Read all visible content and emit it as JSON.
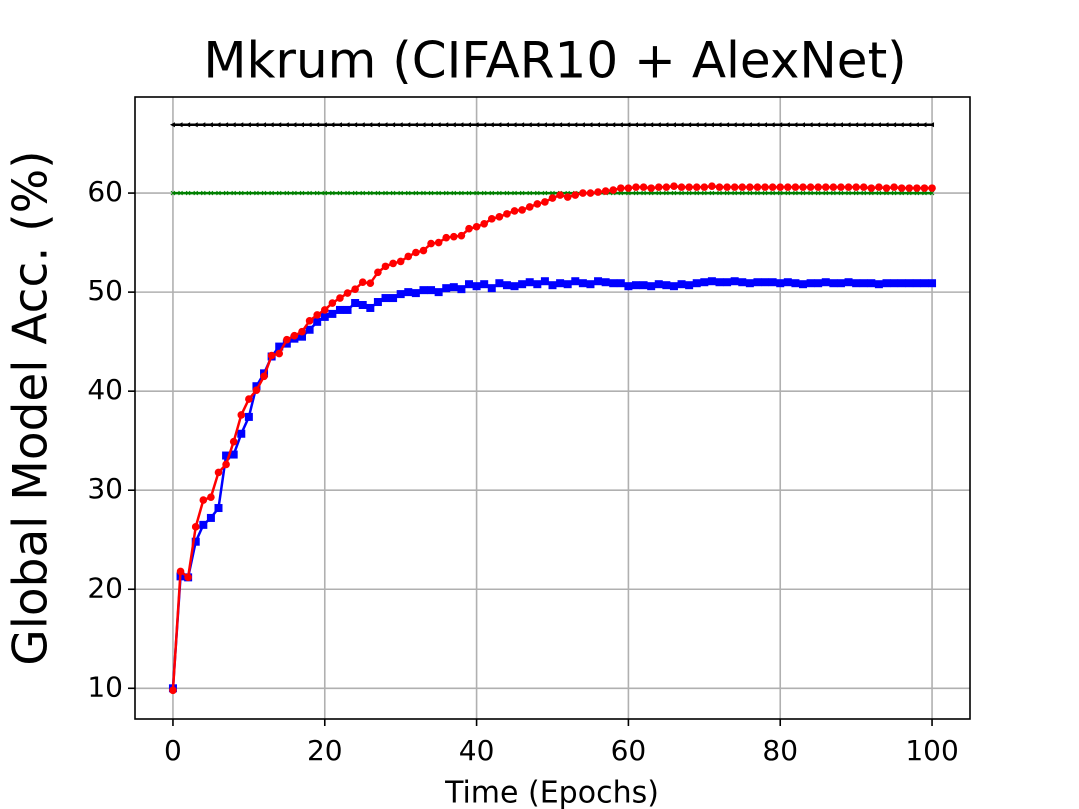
{
  "chart_data": {
    "type": "line",
    "title": "Mkrum (CIFAR10 + AlexNet)",
    "xlabel": "Time (Epochs)",
    "ylabel": "Global Model Acc. (%)",
    "x": [
      0,
      1,
      2,
      3,
      4,
      5,
      6,
      7,
      8,
      9,
      10,
      11,
      12,
      13,
      14,
      15,
      16,
      17,
      18,
      19,
      20,
      21,
      22,
      23,
      24,
      25,
      26,
      27,
      28,
      29,
      30,
      31,
      32,
      33,
      34,
      35,
      36,
      37,
      38,
      39,
      40,
      41,
      42,
      43,
      44,
      45,
      46,
      47,
      48,
      49,
      50,
      51,
      52,
      53,
      54,
      55,
      56,
      57,
      58,
      59,
      60,
      61,
      62,
      63,
      64,
      65,
      66,
      67,
      68,
      69,
      70,
      71,
      72,
      73,
      74,
      75,
      76,
      77,
      78,
      79,
      80,
      81,
      82,
      83,
      84,
      85,
      86,
      87,
      88,
      89,
      90,
      91,
      92,
      93,
      94,
      95,
      96,
      97,
      98,
      99,
      100
    ],
    "series": [
      {
        "color": "#000000",
        "marker": "triangle-left",
        "values": [
          66.9,
          66.9,
          66.9,
          66.9,
          66.9,
          66.9,
          66.9,
          66.9,
          66.9,
          66.9,
          66.9,
          66.9,
          66.9,
          66.9,
          66.9,
          66.9,
          66.9,
          66.9,
          66.9,
          66.9,
          66.9,
          66.9,
          66.9,
          66.9,
          66.9,
          66.9,
          66.9,
          66.9,
          66.9,
          66.9,
          66.9,
          66.9,
          66.9,
          66.9,
          66.9,
          66.9,
          66.9,
          66.9,
          66.9,
          66.9,
          66.9,
          66.9,
          66.9,
          66.9,
          66.9,
          66.9,
          66.9,
          66.9,
          66.9,
          66.9,
          66.9,
          66.9,
          66.9,
          66.9,
          66.9,
          66.9,
          66.9,
          66.9,
          66.9,
          66.9,
          66.9,
          66.9,
          66.9,
          66.9,
          66.9,
          66.9,
          66.9,
          66.9,
          66.9,
          66.9,
          66.9,
          66.9,
          66.9,
          66.9,
          66.9,
          66.9,
          66.9,
          66.9,
          66.9,
          66.9,
          66.9,
          66.9,
          66.9,
          66.9,
          66.9,
          66.9,
          66.9,
          66.9,
          66.9,
          66.9,
          66.9,
          66.9,
          66.9,
          66.9,
          66.9,
          66.9,
          66.9,
          66.9,
          66.9,
          66.9,
          66.9
        ]
      },
      {
        "color": "#008000",
        "marker": "x",
        "values": [
          60,
          60,
          60,
          60,
          60,
          60,
          60,
          60,
          60,
          60,
          60,
          60,
          60,
          60,
          60,
          60,
          60,
          60,
          60,
          60,
          60,
          60,
          60,
          60,
          60,
          60,
          60,
          60,
          60,
          60,
          60,
          60,
          60,
          60,
          60,
          60,
          60,
          60,
          60,
          60,
          60,
          60,
          60,
          60,
          60,
          60,
          60,
          60,
          60,
          60,
          60,
          60,
          60,
          60,
          60,
          60,
          60,
          60,
          60,
          60,
          60,
          60,
          60,
          60,
          60,
          60,
          60,
          60,
          60,
          60,
          60,
          60,
          60,
          60,
          60,
          60,
          60,
          60,
          60,
          60,
          60,
          60,
          60,
          60,
          60,
          60,
          60,
          60,
          60,
          60,
          60,
          60,
          60,
          60,
          60,
          60,
          60,
          60,
          60,
          60,
          60
        ]
      },
      {
        "color": "#0000ff",
        "marker": "square",
        "values": [
          10,
          21.3,
          21.2,
          24.8,
          26.5,
          27.2,
          28.2,
          33.5,
          33.6,
          35.7,
          37.4,
          40.5,
          41.8,
          43.5,
          44.5,
          44.8,
          45.3,
          45.5,
          46.2,
          47,
          47.5,
          47.8,
          48.2,
          48.2,
          48.9,
          48.7,
          48.4,
          49,
          49.4,
          49.4,
          49.8,
          50,
          49.9,
          50.2,
          50.2,
          50,
          50.4,
          50.5,
          50.3,
          50.8,
          50.6,
          50.8,
          50.4,
          50.9,
          50.7,
          50.6,
          50.8,
          51,
          50.8,
          51.1,
          50.7,
          50.9,
          50.8,
          51.1,
          50.9,
          50.8,
          51.1,
          51,
          50.9,
          50.9,
          50.6,
          50.7,
          50.7,
          50.6,
          50.8,
          50.7,
          50.6,
          50.8,
          50.7,
          50.9,
          51,
          51.1,
          51,
          51,
          51.1,
          51,
          50.9,
          51,
          51,
          51,
          50.9,
          51,
          50.9,
          50.8,
          50.9,
          50.9,
          51,
          50.9,
          50.9,
          51,
          50.9,
          50.9,
          50.9,
          50.8,
          50.9,
          50.9,
          50.9,
          50.9,
          50.9,
          50.9,
          50.9
        ]
      },
      {
        "color": "#ff0000",
        "marker": "circle",
        "values": [
          9.8,
          21.8,
          21.2,
          26.3,
          29,
          29.3,
          31.8,
          32.6,
          34.9,
          37.6,
          39.2,
          40.1,
          41.5,
          43.6,
          43.8,
          45.2,
          45.6,
          46,
          47.1,
          47.7,
          48.2,
          48.9,
          49.4,
          49.9,
          50.3,
          51,
          50.9,
          52,
          52.6,
          52.9,
          53.1,
          53.6,
          54,
          54.2,
          54.9,
          55,
          55.5,
          55.6,
          55.7,
          56.4,
          56.6,
          56.9,
          57.4,
          57.6,
          57.9,
          58.2,
          58.3,
          58.6,
          58.9,
          59.1,
          59.5,
          59.8,
          59.6,
          59.8,
          60,
          60,
          60.1,
          60.2,
          60.3,
          60.5,
          60.5,
          60.6,
          60.6,
          60.5,
          60.6,
          60.6,
          60.7,
          60.6,
          60.6,
          60.6,
          60.6,
          60.7,
          60.6,
          60.6,
          60.6,
          60.6,
          60.6,
          60.6,
          60.6,
          60.6,
          60.6,
          60.6,
          60.6,
          60.6,
          60.6,
          60.6,
          60.6,
          60.6,
          60.6,
          60.6,
          60.6,
          60.6,
          60.5,
          60.6,
          60.5,
          60.6,
          60.5,
          60.5,
          60.5,
          60.5,
          60.5
        ]
      }
    ],
    "xlim": [
      -5,
      105
    ],
    "ylim": [
      6.9,
      69.7
    ],
    "xticks": [
      0,
      20,
      40,
      60,
      80,
      100
    ],
    "yticks": [
      10,
      20,
      30,
      40,
      50,
      60
    ],
    "grid": true
  }
}
